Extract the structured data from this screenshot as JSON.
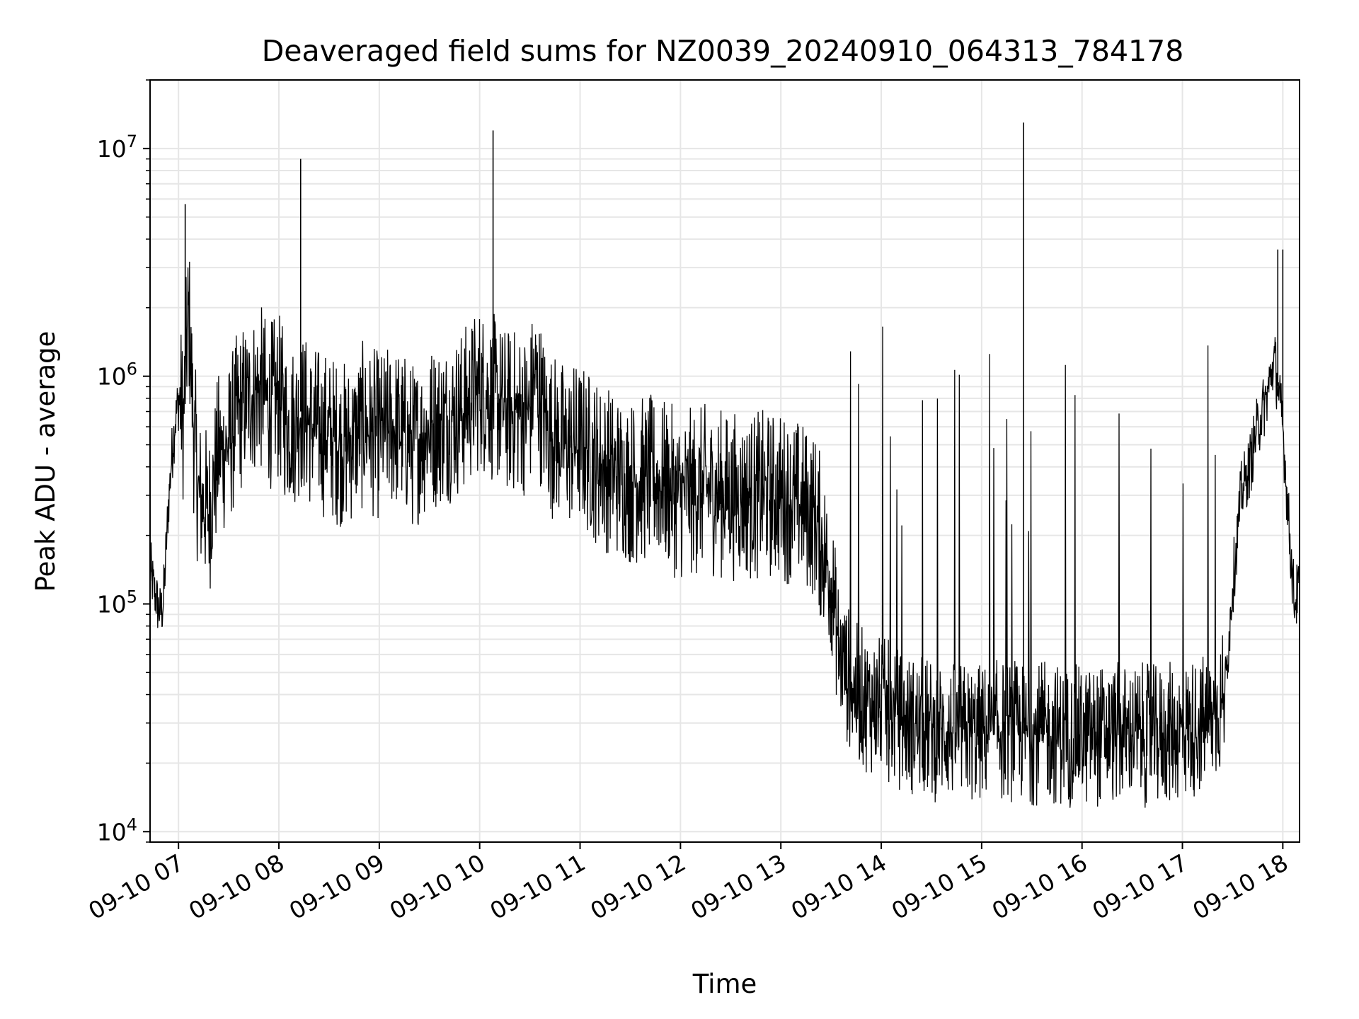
{
  "chart_data": {
    "type": "line",
    "title": "Deaveraged field sums for NZ0039_20240910_064313_784178",
    "xlabel": "Time",
    "ylabel": "Peak ADU - average",
    "xscale": "time",
    "yscale": "log",
    "xlim": [
      "2024-09-10 06:43",
      "2024-09-10 18:10"
    ],
    "ylim": [
      9000,
      20000000
    ],
    "grid": true,
    "line_color": "#000000",
    "grid_color": "#e6e6e6",
    "x_ticks": [
      {
        "value": "2024-09-10 07:00",
        "label": "09-10 07"
      },
      {
        "value": "2024-09-10 08:00",
        "label": "09-10 08"
      },
      {
        "value": "2024-09-10 09:00",
        "label": "09-10 09"
      },
      {
        "value": "2024-09-10 10:00",
        "label": "09-10 10"
      },
      {
        "value": "2024-09-10 11:00",
        "label": "09-10 11"
      },
      {
        "value": "2024-09-10 12:00",
        "label": "09-10 12"
      },
      {
        "value": "2024-09-10 13:00",
        "label": "09-10 13"
      },
      {
        "value": "2024-09-10 14:00",
        "label": "09-10 14"
      },
      {
        "value": "2024-09-10 15:00",
        "label": "09-10 15"
      },
      {
        "value": "2024-09-10 16:00",
        "label": "09-10 16"
      },
      {
        "value": "2024-09-10 17:00",
        "label": "09-10 17"
      },
      {
        "value": "2024-09-10 18:00",
        "label": "09-10 18"
      }
    ],
    "y_ticks": [
      {
        "value": 10000,
        "base": "10",
        "exp": "4"
      },
      {
        "value": 100000,
        "base": "10",
        "exp": "5"
      },
      {
        "value": 1000000,
        "base": "10",
        "exp": "6"
      },
      {
        "value": 10000000,
        "base": "10",
        "exp": "7"
      }
    ],
    "series": [
      {
        "x": [
          "2024-09-10 06:43",
          "2024-09-10 06:46",
          "2024-09-10 06:49",
          "2024-09-10 06:51",
          "2024-09-10 06:54",
          "2024-09-10 06:57",
          "2024-09-10 07:00",
          "2024-09-10 07:03",
          "2024-09-10 07:06",
          "2024-09-10 07:09",
          "2024-09-10 07:12",
          "2024-09-10 07:18",
          "2024-09-10 07:24",
          "2024-09-10 07:30",
          "2024-09-10 07:36",
          "2024-09-10 07:42",
          "2024-09-10 07:48",
          "2024-09-10 07:54",
          "2024-09-10 08:00",
          "2024-09-10 08:06",
          "2024-09-10 08:13",
          "2024-09-10 08:20",
          "2024-09-10 08:30",
          "2024-09-10 08:40",
          "2024-09-10 08:50",
          "2024-09-10 09:00",
          "2024-09-10 09:10",
          "2024-09-10 09:20",
          "2024-09-10 09:30",
          "2024-09-10 09:40",
          "2024-09-10 09:50",
          "2024-09-10 10:00",
          "2024-09-10 10:08",
          "2024-09-10 10:16",
          "2024-09-10 10:30",
          "2024-09-10 10:33",
          "2024-09-10 10:40",
          "2024-09-10 10:50",
          "2024-09-10 11:00",
          "2024-09-10 11:15",
          "2024-09-10 11:30",
          "2024-09-10 11:45",
          "2024-09-10 12:00",
          "2024-09-10 12:15",
          "2024-09-10 12:30",
          "2024-09-10 12:45",
          "2024-09-10 13:00",
          "2024-09-10 13:10",
          "2024-09-10 13:20",
          "2024-09-10 13:25",
          "2024-09-10 13:30",
          "2024-09-10 13:35",
          "2024-09-10 13:45",
          "2024-09-10 14:00",
          "2024-09-10 14:15",
          "2024-09-10 14:30",
          "2024-09-10 14:45",
          "2024-09-10 15:00",
          "2024-09-10 15:15",
          "2024-09-10 15:25",
          "2024-09-10 15:35",
          "2024-09-10 15:45",
          "2024-09-10 16:00",
          "2024-09-10 16:15",
          "2024-09-10 16:30",
          "2024-09-10 16:45",
          "2024-09-10 17:00",
          "2024-09-10 17:15",
          "2024-09-10 17:25",
          "2024-09-10 17:30",
          "2024-09-10 17:35",
          "2024-09-10 17:40",
          "2024-09-10 17:45",
          "2024-09-10 17:50",
          "2024-09-10 17:55",
          "2024-09-10 18:00",
          "2024-09-10 18:04",
          "2024-09-10 18:07",
          "2024-09-10 18:10"
        ],
        "y": [
          140000,
          110000,
          90000,
          100000,
          280000,
          550000,
          800000,
          650000,
          2000000,
          600000,
          300000,
          250000,
          450000,
          500000,
          700000,
          800000,
          900000,
          750000,
          800000,
          600000,
          700000,
          600000,
          550000,
          500000,
          600000,
          550000,
          600000,
          500000,
          600000,
          650000,
          700000,
          900000,
          800000,
          700000,
          700000,
          1000000,
          600000,
          500000,
          500000,
          400000,
          350000,
          350000,
          300000,
          320000,
          300000,
          300000,
          300000,
          280000,
          250000,
          180000,
          130000,
          60000,
          40000,
          35000,
          30000,
          28000,
          27000,
          27000,
          28000,
          27000,
          27000,
          27000,
          26000,
          27000,
          27000,
          26000,
          28000,
          30000,
          38000,
          120000,
          300000,
          400000,
          600000,
          800000,
          1200000,
          600000,
          200000,
          100000,
          120000
        ]
      }
    ],
    "spikes": [
      {
        "x": "2024-09-10 07:04",
        "y": 5700000
      },
      {
        "x": "2024-09-10 08:13",
        "y": 9000000
      },
      {
        "x": "2024-09-10 10:08",
        "y": 12000000
      },
      {
        "x": "2024-09-10 15:25",
        "y": 13000000
      },
      {
        "x": "2024-09-10 17:57",
        "y": 3600000
      },
      {
        "x": "2024-09-10 18:00",
        "y": 3600000
      }
    ]
  }
}
